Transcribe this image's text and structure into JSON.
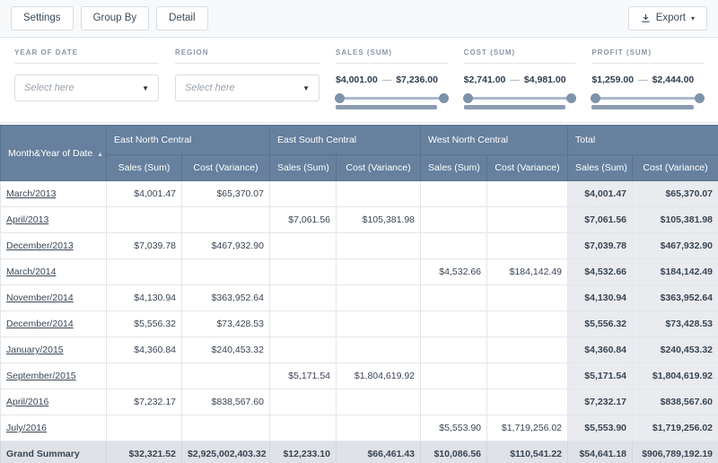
{
  "toolbar": {
    "buttons": [
      "Settings",
      "Group By",
      "Detail"
    ],
    "export_label": "Export"
  },
  "icons": {
    "select_caret": "▼",
    "export_caret": "▾",
    "sort_ascending": "▲"
  },
  "filters": {
    "separator": "—",
    "selects": [
      {
        "label": "YEAR OF DATE",
        "placeholder": "Select here"
      },
      {
        "label": "REGION",
        "placeholder": "Select here"
      }
    ],
    "ranges": [
      {
        "label": "SALES (SUM)",
        "min": "$4,001.00",
        "max": "$7,236.00"
      },
      {
        "label": "COST (SUM)",
        "min": "$2,741.00",
        "max": "$4,981.00"
      },
      {
        "label": "PROFIT (SUM)",
        "min": "$1,259.00",
        "max": "$2,444.00"
      }
    ]
  },
  "table": {
    "corner_label": "Month&Year of Date",
    "column_groups": [
      {
        "label": "East North Central",
        "columns": [
          "Sales (Sum)",
          "Cost (Variance)"
        ]
      },
      {
        "label": "East South Central",
        "columns": [
          "Sales (Sum)",
          "Cost (Variance)"
        ]
      },
      {
        "label": "West North Central",
        "columns": [
          "Sales (Sum)",
          "Cost (Variance)"
        ]
      },
      {
        "label": "Total",
        "columns": [
          "Sales (Sum)",
          "Cost (Variance)"
        ]
      }
    ],
    "rows": [
      {
        "label": "March/2013",
        "values": [
          "$4,001.47",
          "$65,370.07",
          "",
          "",
          "",
          "",
          "$4,001.47",
          "$65,370.07"
        ]
      },
      {
        "label": "April/2013",
        "values": [
          "",
          "",
          "$7,061.56",
          "$105,381.98",
          "",
          "",
          "$7,061.56",
          "$105,381.98"
        ]
      },
      {
        "label": "December/2013",
        "values": [
          "$7,039.78",
          "$467,932.90",
          "",
          "",
          "",
          "",
          "$7,039.78",
          "$467,932.90"
        ]
      },
      {
        "label": "March/2014",
        "values": [
          "",
          "",
          "",
          "",
          "$4,532.66",
          "$184,142.49",
          "$4,532.66",
          "$184,142.49"
        ]
      },
      {
        "label": "November/2014",
        "values": [
          "$4,130.94",
          "$363,952.64",
          "",
          "",
          "",
          "",
          "$4,130.94",
          "$363,952.64"
        ]
      },
      {
        "label": "December/2014",
        "values": [
          "$5,556.32",
          "$73,428.53",
          "",
          "",
          "",
          "",
          "$5,556.32",
          "$73,428.53"
        ]
      },
      {
        "label": "January/2015",
        "values": [
          "$4,360.84",
          "$240,453.32",
          "",
          "",
          "",
          "",
          "$4,360.84",
          "$240,453.32"
        ]
      },
      {
        "label": "September/2015",
        "values": [
          "",
          "",
          "$5,171.54",
          "$1,804,619.92",
          "",
          "",
          "$5,171.54",
          "$1,804,619.92"
        ]
      },
      {
        "label": "April/2016",
        "values": [
          "$7,232.17",
          "$838,567.60",
          "",
          "",
          "",
          "",
          "$7,232.17",
          "$838,567.60"
        ]
      },
      {
        "label": "July/2016",
        "values": [
          "",
          "",
          "",
          "",
          "$5,553.90",
          "$1,719,256.02",
          "$5,553.90",
          "$1,719,256.02"
        ]
      }
    ],
    "grand_summary": {
      "label": "Grand Summary",
      "values": [
        "$32,321.52",
        "$2,925,002,403.32",
        "$12,233.10",
        "$66,461.43",
        "$10,086.56",
        "$110,541.22",
        "$54,641.18",
        "$906,789,192.19"
      ]
    }
  },
  "colors": {
    "header_bg": "#66809e",
    "total_column_bg": "#e9ebee",
    "grand_row_bg": "#dfe2e6",
    "slider_accent": "#7e92a9"
  }
}
